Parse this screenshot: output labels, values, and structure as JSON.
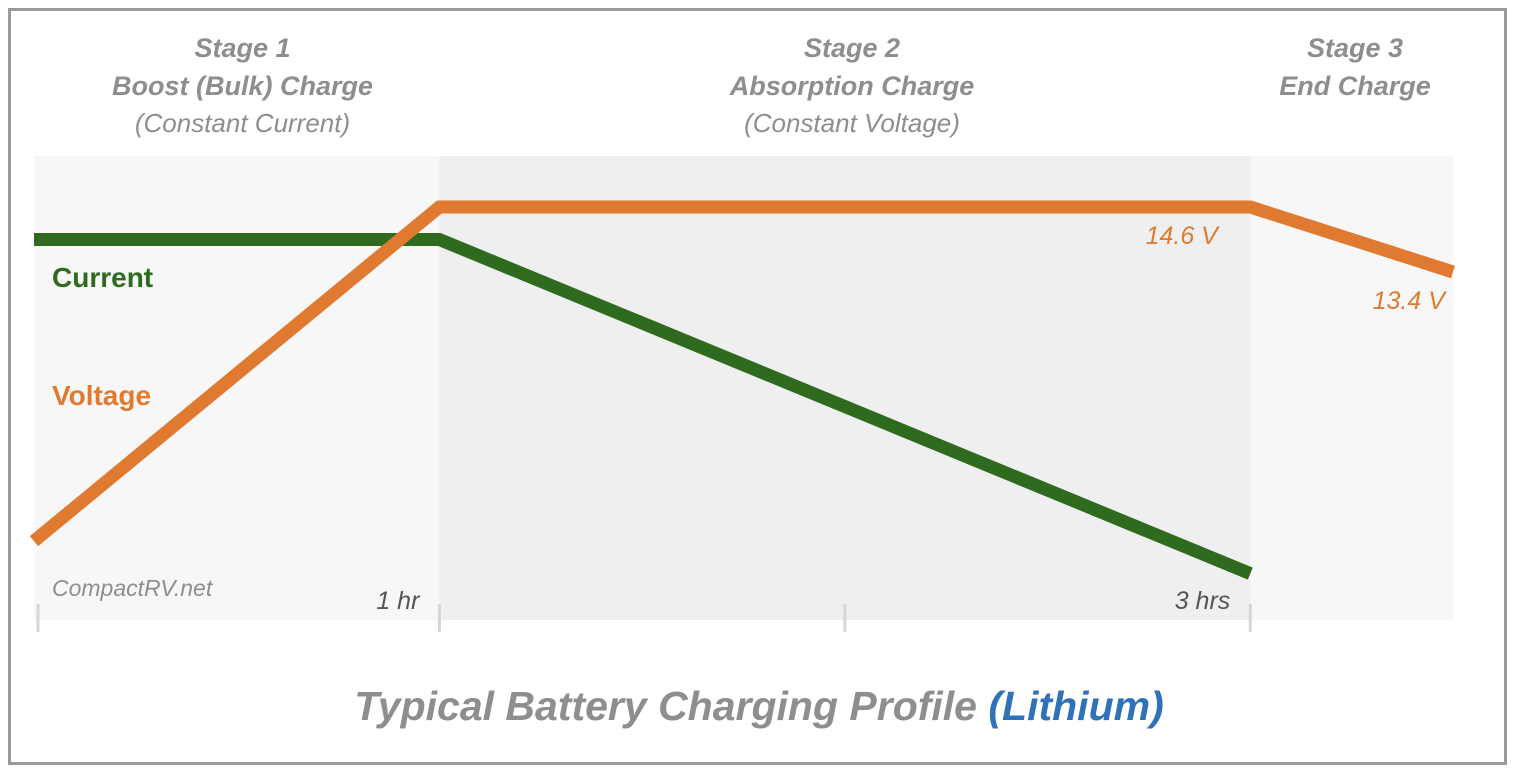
{
  "chart_data": {
    "type": "line",
    "title": "Typical Battery Charging Profile",
    "title_accent": "(Lithium)",
    "watermark": "CompactRV.net",
    "stages": [
      {
        "name": "Stage 1",
        "label": "Boost (Bulk) Charge",
        "sub": "(Constant Current)"
      },
      {
        "name": "Stage 2",
        "label": "Absorption Charge",
        "sub": "(Constant Voltage)"
      },
      {
        "name": "Stage 3",
        "label": "End Charge",
        "sub": ""
      }
    ],
    "x_tick_labels": [
      {
        "x": 1,
        "label": "1 hr"
      },
      {
        "x": 3,
        "label": "3 hrs"
      }
    ],
    "x_ticks": [
      0,
      1,
      2,
      3
    ],
    "xlim": [
      0,
      3.5
    ],
    "ylim": [
      0,
      100
    ],
    "stage_bounds": [
      0,
      1,
      3,
      3.5
    ],
    "stage_colors": [
      "#f7f7f7",
      "#efefef",
      "#f7f7f7"
    ],
    "series": [
      {
        "name": "Current",
        "color": "#2e6b1e",
        "points": [
          [
            0,
            82
          ],
          [
            1,
            82
          ],
          [
            3,
            10
          ]
        ]
      },
      {
        "name": "Voltage",
        "color": "#e07a30",
        "points": [
          [
            0,
            17
          ],
          [
            1,
            89
          ],
          [
            3,
            89
          ],
          [
            3.5,
            75
          ]
        ]
      }
    ],
    "annotations": [
      {
        "text": "14.6 V",
        "x": 2.92,
        "y": 81,
        "color": "#e07a30"
      },
      {
        "text": "13.4 V",
        "x": 3.48,
        "y": 67,
        "color": "#e07a30"
      }
    ]
  }
}
